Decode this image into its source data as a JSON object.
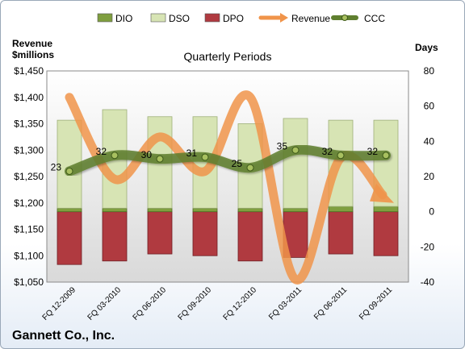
{
  "company": "Gannett Co., Inc.",
  "chart_data": {
    "type": "bar",
    "title": "Quarterly Periods",
    "y_left_label": [
      "Revenue",
      "$millions"
    ],
    "y_right_label": "Days",
    "y_left_range": [
      1050,
      1450
    ],
    "y_left_ticks": [
      "$1,050",
      "$1,100",
      "$1,150",
      "$1,200",
      "$1,250",
      "$1,300",
      "$1,350",
      "$1,400",
      "$1,450"
    ],
    "y_right_range": [
      -40,
      80
    ],
    "y_right_ticks": [
      "-40",
      "-20",
      "0",
      "20",
      "40",
      "60",
      "80"
    ],
    "categories": [
      "FQ 12-2009",
      "FQ 03-2010",
      "FQ 06-2010",
      "FQ 09-2010",
      "FQ 12-2010",
      "FQ 03-2011",
      "FQ 06-2011",
      "FQ 09-2011"
    ],
    "stacked_series": [
      {
        "name": "DIO",
        "color": "#7f9f3f",
        "values": [
          2,
          2,
          2,
          2,
          2,
          2,
          3,
          3
        ]
      },
      {
        "name": "DSO",
        "color": "#d7e4b4",
        "values": [
          50,
          56,
          52,
          52,
          48,
          51,
          49,
          49
        ]
      },
      {
        "name": "DPO",
        "color": "#b03a40",
        "values": [
          -30,
          -28,
          -24,
          -25,
          -28,
          -26,
          -24,
          -25
        ]
      }
    ],
    "line_series": [
      {
        "name": "Revenue",
        "axis": "left",
        "color": "#f0944a",
        "values": [
          1400,
          1245,
          1325,
          1260,
          1400,
          1055,
          1285,
          1200
        ]
      },
      {
        "name": "CCC",
        "axis": "right",
        "color": "#5f7f2f",
        "values": [
          23,
          32,
          30,
          31,
          25,
          35,
          32,
          32
        ],
        "labels": [
          "23",
          "32",
          "30",
          "31",
          "25",
          "35",
          "32",
          "32"
        ]
      }
    ],
    "legend": [
      "DIO",
      "DSO",
      "DPO",
      "Revenue",
      "CCC"
    ],
    "legend_position": "top",
    "grid": false
  }
}
